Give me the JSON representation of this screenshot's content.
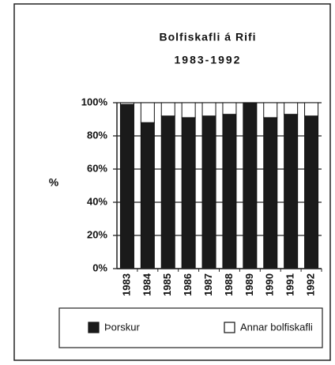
{
  "chart_data": {
    "type": "stacked_bar",
    "title": "Bolfiskafli á Rifi",
    "subtitle": "1983-1992",
    "y_label": "%",
    "categories": [
      "1983",
      "1984",
      "1985",
      "1986",
      "1987",
      "1988",
      "1989",
      "1990",
      "1991",
      "1992"
    ],
    "series": [
      {
        "name": "Þorskur",
        "color": "#1a1a1a",
        "values": [
          99,
          88,
          92,
          91,
          92,
          93,
          100,
          91,
          93,
          92
        ]
      },
      {
        "name": "Annar bolfiskafli",
        "color": "#ffffff",
        "values": [
          1,
          12,
          8,
          9,
          8,
          7,
          0,
          9,
          7,
          8
        ]
      }
    ],
    "ylim": [
      0,
      100
    ],
    "yticks": [
      {
        "value": 0,
        "label": "0%"
      },
      {
        "value": 20,
        "label": "20%"
      },
      {
        "value": 40,
        "label": "40%"
      },
      {
        "value": 60,
        "label": "60%"
      },
      {
        "value": 80,
        "label": "80%"
      },
      {
        "value": 100,
        "label": "100%"
      }
    ],
    "grid": true,
    "legend": "bottom"
  }
}
